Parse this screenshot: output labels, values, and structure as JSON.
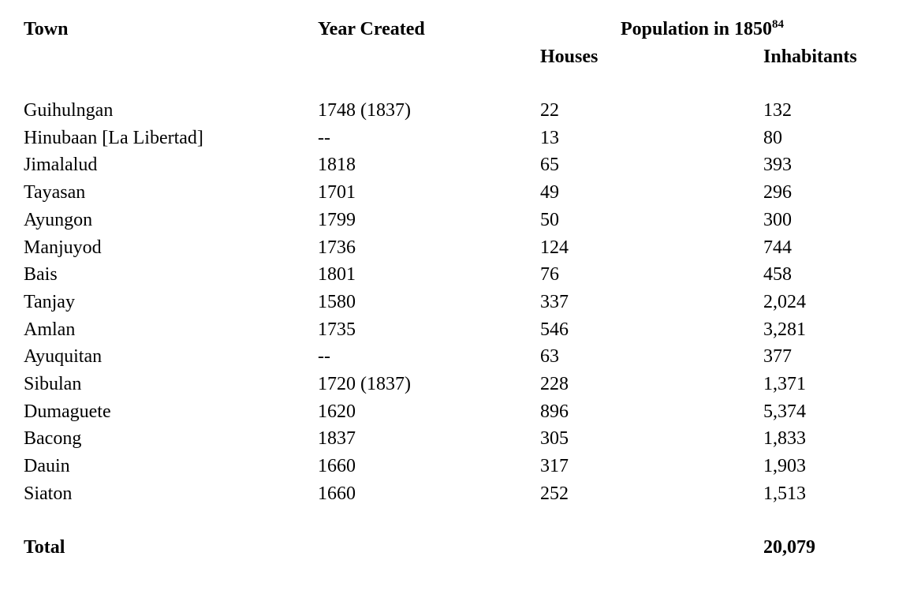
{
  "page": {
    "background_color": "#ffffff",
    "text_color": "#000000"
  },
  "table": {
    "headers": {
      "town": "Town",
      "year_created": "Year Created",
      "population_group": "Population in 1850",
      "population_footnote": "84",
      "houses": "Houses",
      "inhabitants": "Inhabitants"
    },
    "rows": [
      {
        "town": "Guihulngan",
        "year": "1748 (1837)",
        "houses": "22",
        "inhabitants": "132"
      },
      {
        "town": "Hinubaan [La Libertad]",
        "year": "--",
        "houses": "13",
        "inhabitants": "80"
      },
      {
        "town": "Jimalalud",
        "year": "1818",
        "houses": "65",
        "inhabitants": "393"
      },
      {
        "town": "Tayasan",
        "year": "1701",
        "houses": "49",
        "inhabitants": "296"
      },
      {
        "town": "Ayungon",
        "year": "1799",
        "houses": "50",
        "inhabitants": "300"
      },
      {
        "town": "Manjuyod",
        "year": "1736",
        "houses": "124",
        "inhabitants": "744"
      },
      {
        "town": "Bais",
        "year": "1801",
        "houses": "76",
        "inhabitants": "458"
      },
      {
        "town": "Tanjay",
        "year": "1580",
        "houses": "337",
        "inhabitants": "2,024"
      },
      {
        "town": "Amlan",
        "year": "1735",
        "houses": "546",
        "inhabitants": "3,281"
      },
      {
        "town": "Ayuquitan",
        "year": "--",
        "houses": "63",
        "inhabitants": "377"
      },
      {
        "town": "Sibulan",
        "year": "1720 (1837)",
        "houses": "228",
        "inhabitants": "1,371"
      },
      {
        "town": "Dumaguete",
        "year": "1620",
        "houses": "896",
        "inhabitants": "5,374"
      },
      {
        "town": "Bacong",
        "year": "1837",
        "houses": "305",
        "inhabitants": "1,833"
      },
      {
        "town": "Dauin",
        "year": "1660",
        "houses": "317",
        "inhabitants": "1,903"
      },
      {
        "town": "Siaton",
        "year": "1660",
        "houses": "252",
        "inhabitants": "1,513"
      }
    ],
    "total": {
      "label": "Total",
      "inhabitants": "20,079"
    }
  }
}
